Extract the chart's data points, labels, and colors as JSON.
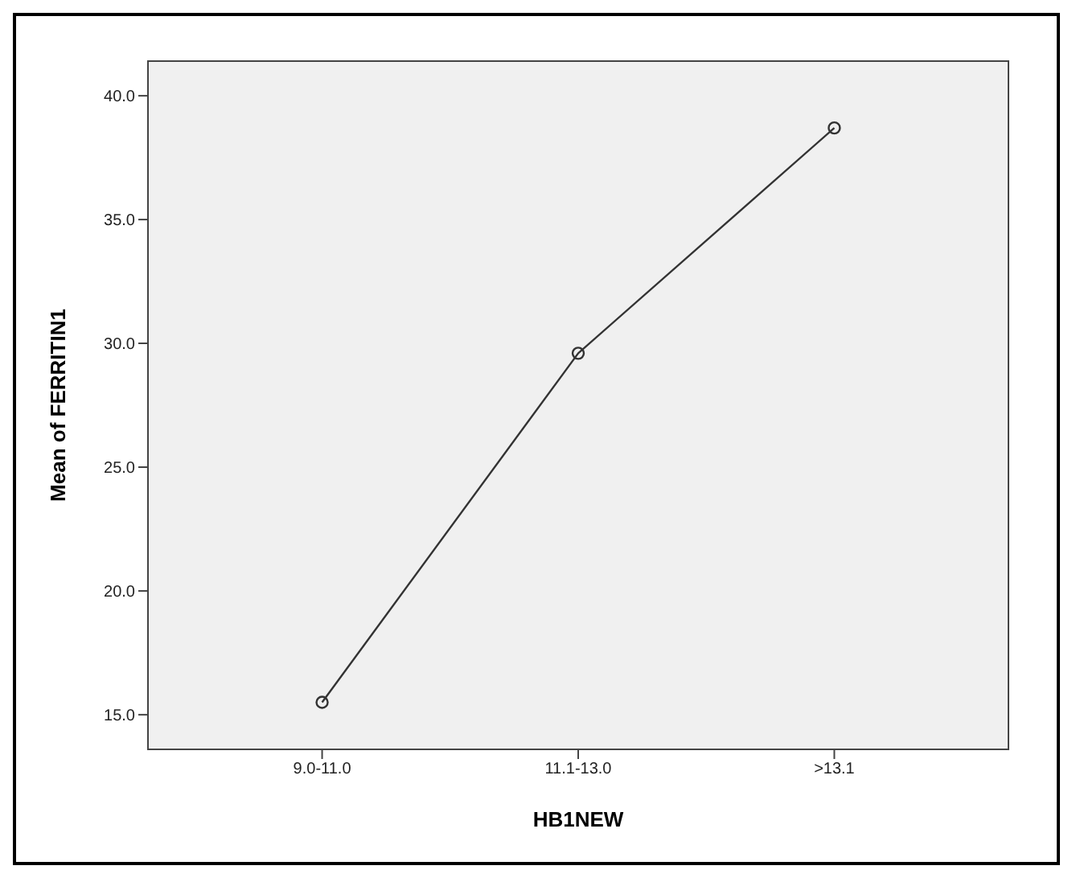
{
  "chart_data": {
    "type": "line",
    "xlabel": "HB1NEW",
    "ylabel": "Mean of FERRITIN1",
    "categories": [
      "9.0-11.0",
      "11.1-13.0",
      ">13.1"
    ],
    "series": [
      {
        "color": "#333333",
        "values": [
          15.5,
          29.6,
          38.7
        ]
      }
    ],
    "ylim": [
      13.6,
      41.4
    ],
    "yticks": [
      {
        "value": 15,
        "label": "15.0"
      },
      {
        "value": 20,
        "label": "20.0"
      },
      {
        "value": 25,
        "label": "25.0"
      },
      {
        "value": 30,
        "label": "30.0"
      },
      {
        "value": 35,
        "label": "35.0"
      },
      {
        "value": 40,
        "label": "40.0"
      }
    ],
    "marker": "circle",
    "line_style": "solid"
  }
}
